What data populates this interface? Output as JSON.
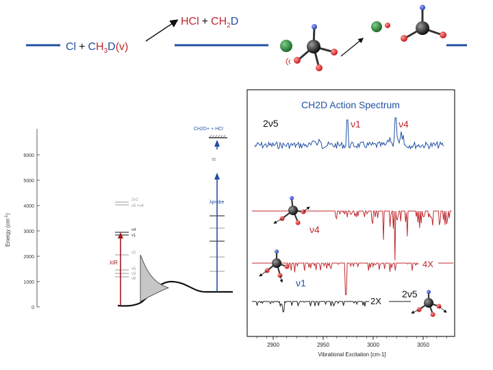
{
  "reaction": {
    "reactants": {
      "cl": "Cl",
      "plus": "+",
      "c": "C",
      "h3": "H",
      "sub3": "3",
      "d": "D",
      "v": "(v)"
    },
    "products": {
      "hcl": "HCl",
      "plus": "+",
      "ch": "CH",
      "sub2": "2",
      "d": "D"
    }
  },
  "energy_diagram": {
    "ylabel": "Energy (cm",
    "ylabel_sup": "-1",
    "ylabel_close": ")",
    "ticks": [
      "0",
      "1000",
      "2000",
      "3000",
      "4000",
      "5000",
      "6000"
    ],
    "labels": {
      "nu4": "ν4",
      "nu1": "ν1",
      "nu2": "ν2",
      "nu5": "ν5",
      "nu3": "ν3",
      "nu6": "ν6",
      "two_nu2": "2ν2",
      "nu5_nu4": "ν5 +ν4",
      "lambda_ir": "λIR",
      "lambda_probe": "λprobe",
      "top_state": "CH2D+ + HCl",
      "break": "≈"
    }
  },
  "spectrum": {
    "title": "CH2D Action Spectrum",
    "xlabel": "Vibrational Excitation [cm-1]",
    "xticks": [
      "2900",
      "2950",
      "3000",
      "3050"
    ],
    "annotations": {
      "two_nu5_top": "2ν5",
      "nu1_top": "ν1",
      "nu4_top": "ν4",
      "nu4_red": "ν4",
      "four_x": "4X",
      "nu1_blue": "ν1",
      "two_x": "2X",
      "two_nu5_bottom": "2ν5"
    },
    "colors": {
      "blue": "#1f4fa3",
      "red": "#c0282d",
      "black": "#1a1a1a"
    }
  }
}
